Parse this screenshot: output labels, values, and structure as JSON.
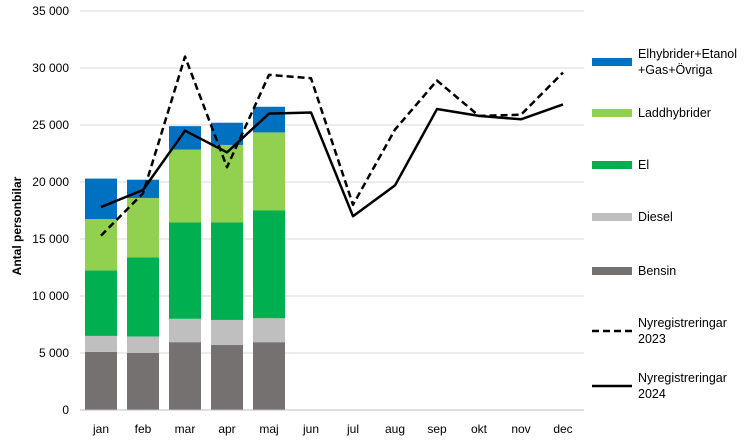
{
  "chart_data": {
    "type": "bar",
    "ylabel": "Antal personbilar",
    "xlabel": "",
    "ylim": [
      0,
      35000
    ],
    "y_ticks": [
      "0",
      "5 000",
      "10 000",
      "15 000",
      "20 000",
      "25 000",
      "30 000",
      "35 000"
    ],
    "y_tick_values": [
      0,
      5000,
      10000,
      15000,
      20000,
      25000,
      30000,
      35000
    ],
    "categories": [
      "jan",
      "feb",
      "mar",
      "apr",
      "maj",
      "jun",
      "jul",
      "aug",
      "sep",
      "okt",
      "nov",
      "dec"
    ],
    "grid": true,
    "legend_position": "right",
    "stacked_series": [
      {
        "name": "Bensin",
        "color": "#767171",
        "values": [
          5100,
          5000,
          5950,
          5700,
          5950,
          null,
          null,
          null,
          null,
          null,
          null,
          null
        ]
      },
      {
        "name": "Diesel",
        "color": "#bfbfbf",
        "values": [
          1400,
          1450,
          2050,
          2200,
          2100,
          null,
          null,
          null,
          null,
          null,
          null,
          null
        ]
      },
      {
        "name": "El",
        "color": "#00b050",
        "values": [
          5750,
          6950,
          8450,
          8550,
          9450,
          null,
          null,
          null,
          null,
          null,
          null,
          null
        ]
      },
      {
        "name": "Laddhybrider",
        "color": "#92d050",
        "values": [
          4500,
          5200,
          6400,
          6800,
          6850,
          null,
          null,
          null,
          null,
          null,
          null,
          null
        ]
      },
      {
        "name": "Elhybrider+Etanol +Gas+Övriga",
        "label_lines": [
          "Elhybrider+Etanol",
          "+Gas+Övriga"
        ],
        "color": "#0070c0",
        "values": [
          3550,
          1600,
          2050,
          1950,
          2250,
          null,
          null,
          null,
          null,
          null,
          null,
          null
        ]
      }
    ],
    "line_series": [
      {
        "name": "Nyregistreringar 2023",
        "label_lines": [
          "Nyregistreringar",
          "2023"
        ],
        "style": "dashed",
        "color": "#000000",
        "values": [
          15300,
          19000,
          31000,
          21300,
          29400,
          29100,
          18000,
          24600,
          28900,
          25800,
          25900,
          29600
        ]
      },
      {
        "name": "Nyregistreringar 2024",
        "label_lines": [
          "Nyregistreringar",
          "2024"
        ],
        "style": "solid",
        "color": "#000000",
        "values": [
          17800,
          19300,
          24500,
          22600,
          26000,
          26100,
          17000,
          19700,
          26400,
          25800,
          25500,
          26800
        ]
      }
    ]
  }
}
